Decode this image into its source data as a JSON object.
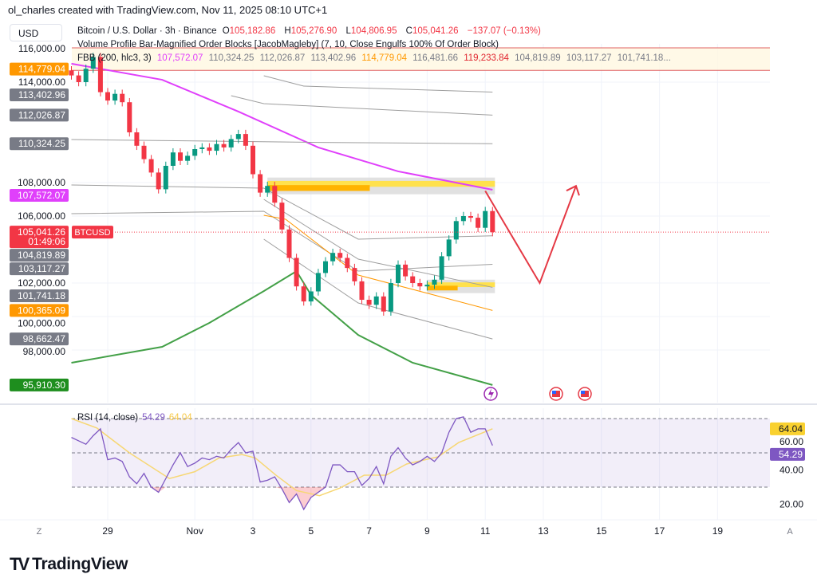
{
  "header": {
    "credit": "ol_charles created with TradingView.com, Nov 11, 2025 08:10 UTC+1",
    "currency": "USD",
    "symbol_title": "Bitcoin / U.S. Dollar · 3h · Binance",
    "ohlc": {
      "o_label": "O",
      "o": "105,182.86",
      "h_label": "H",
      "h": "105,276.90",
      "l_label": "L",
      "l": "104,806.95",
      "c_label": "C",
      "c": "105,041.26",
      "change": "−137.07 (−0.13%)"
    },
    "indicator_vp": "Volume Profile Bar-Magnified Order Blocks [JacobMagleby] (7, 10, Close Engulfs 100% Of Order Block)",
    "indicator_fbb": {
      "name": "FBB (200, hlc3, 3)",
      "values": [
        "107,572.07",
        "110,324.25",
        "112,026.87",
        "113,402.96",
        "114,779.04",
        "116,481.66",
        "119,233.84",
        "104,819.89",
        "103,117.27",
        "101,741.18..."
      ]
    }
  },
  "colors": {
    "up": "#089981",
    "down": "#f23645",
    "basis": "#e040fb",
    "lower": "#43a047",
    "orange": "#ff9800",
    "band": "#9e9e9e",
    "rsi": "#7e57c2",
    "rsi_ma": "#f7d774",
    "projection": "#e53945",
    "order_block": "#ffd600"
  },
  "price_axis": {
    "grid": [
      {
        "v": 116000,
        "t": "116,000.00"
      },
      {
        "v": 114000,
        "t": "114,000.00"
      },
      {
        "v": 108000,
        "t": "108,000.00"
      },
      {
        "v": 106000,
        "t": "106,000.00"
      },
      {
        "v": 102000,
        "t": "102,000.00"
      },
      {
        "v": 100000,
        "t": "100,000.00"
      },
      {
        "v": 98000,
        "t": "98,000.00"
      }
    ],
    "tags": [
      {
        "v": 114779.04,
        "t": "114,779.04",
        "bg": "#ff9800"
      },
      {
        "v": 113402.96,
        "t": "113,402.96",
        "bg": "#787b86"
      },
      {
        "v": 112026.87,
        "t": "112,026.87",
        "bg": "#787b86"
      },
      {
        "v": 110324.25,
        "t": "110,324.25",
        "bg": "#787b86"
      },
      {
        "v": 107572.07,
        "t": "107,572.07",
        "bg": "#e040fb"
      },
      {
        "v": 104819.89,
        "t": "104,819.89",
        "bg": "#787b86"
      },
      {
        "v": 103117.27,
        "t": "103,117.27",
        "bg": "#787b86"
      },
      {
        "v": 101741.18,
        "t": "101,741.18",
        "bg": "#787b86"
      },
      {
        "v": 100365.09,
        "t": "100,365.09",
        "bg": "#ff9800"
      },
      {
        "v": 98662.47,
        "t": "98,662.47",
        "bg": "#787b86"
      },
      {
        "v": 95910.3,
        "t": "95,910.30",
        "bg": "#1e8e1e"
      }
    ],
    "last_price": {
      "v": 105041.26,
      "t": "105,041.26",
      "countdown": "01:49:06",
      "symbol": "BTCUSD"
    }
  },
  "time_axis": {
    "ticks": [
      {
        "d": "2025-10-29T00:00",
        "t": "29"
      },
      {
        "d": "2025-11-01T00:00",
        "t": "Nov"
      },
      {
        "d": "2025-11-03T00:00",
        "t": "3"
      },
      {
        "d": "2025-11-05T00:00",
        "t": "5"
      },
      {
        "d": "2025-11-07T00:00",
        "t": "7"
      },
      {
        "d": "2025-11-09T00:00",
        "t": "9"
      },
      {
        "d": "2025-11-11T00:00",
        "t": "11"
      },
      {
        "d": "2025-11-13T00:00",
        "t": "13"
      },
      {
        "d": "2025-11-15T00:00",
        "t": "15"
      },
      {
        "d": "2025-11-17T00:00",
        "t": "17"
      },
      {
        "d": "2025-11-19T00:00",
        "t": "19"
      }
    ],
    "left_button": "Z",
    "right_button": "A"
  },
  "chart_data": [
    {
      "type": "candlestick",
      "title": "Bitcoin / U.S. Dollar · 3h · Binance",
      "ylim": [
        95000,
        117000
      ],
      "candles_close": [
        [
          "2025-10-27T18:00",
          114400
        ],
        [
          "2025-10-28T00:00",
          114000
        ],
        [
          "2025-10-28T06:00",
          114800
        ],
        [
          "2025-10-28T12:00",
          115500
        ],
        [
          "2025-10-28T18:00",
          113400
        ],
        [
          "2025-10-29T00:00",
          112900
        ],
        [
          "2025-10-29T06:00",
          113300
        ],
        [
          "2025-10-29T12:00",
          112800
        ],
        [
          "2025-10-29T18:00",
          111000
        ],
        [
          "2025-10-30T00:00",
          110200
        ],
        [
          "2025-10-30T06:00",
          109400
        ],
        [
          "2025-10-30T12:00",
          108600
        ],
        [
          "2025-10-30T18:00",
          107600
        ],
        [
          "2025-10-31T00:00",
          109000
        ],
        [
          "2025-10-31T06:00",
          109800
        ],
        [
          "2025-10-31T12:00",
          109300
        ],
        [
          "2025-10-31T18:00",
          109600
        ],
        [
          "2025-11-01T00:00",
          110000
        ],
        [
          "2025-11-01T06:00",
          110100
        ],
        [
          "2025-11-01T12:00",
          109900
        ],
        [
          "2025-11-01T18:00",
          110300
        ],
        [
          "2025-11-02T00:00",
          110100
        ],
        [
          "2025-11-02T06:00",
          110600
        ],
        [
          "2025-11-02T12:00",
          110900
        ],
        [
          "2025-11-02T18:00",
          110200
        ],
        [
          "2025-11-03T00:00",
          108500
        ],
        [
          "2025-11-03T06:00",
          107400
        ],
        [
          "2025-11-03T12:00",
          107800
        ],
        [
          "2025-11-03T18:00",
          106800
        ],
        [
          "2025-11-04T00:00",
          105200
        ],
        [
          "2025-11-04T06:00",
          103500
        ],
        [
          "2025-11-04T12:00",
          101800
        ],
        [
          "2025-11-04T18:00",
          100900
        ],
        [
          "2025-11-05T00:00",
          101500
        ],
        [
          "2025-11-05T06:00",
          102600
        ],
        [
          "2025-11-05T12:00",
          103300
        ],
        [
          "2025-11-05T18:00",
          103800
        ],
        [
          "2025-11-06T00:00",
          103500
        ],
        [
          "2025-11-06T06:00",
          102900
        ],
        [
          "2025-11-06T12:00",
          102100
        ],
        [
          "2025-11-06T18:00",
          101000
        ],
        [
          "2025-11-07T00:00",
          100700
        ],
        [
          "2025-11-07T06:00",
          101200
        ],
        [
          "2025-11-07T12:00",
          100300
        ],
        [
          "2025-11-07T18:00",
          102000
        ],
        [
          "2025-11-08T00:00",
          103100
        ],
        [
          "2025-11-08T06:00",
          102400
        ],
        [
          "2025-11-08T12:00",
          102000
        ],
        [
          "2025-11-08T18:00",
          101800
        ],
        [
          "2025-11-09T00:00",
          101900
        ],
        [
          "2025-11-09T06:00",
          102200
        ],
        [
          "2025-11-09T12:00",
          103600
        ],
        [
          "2025-11-09T18:00",
          104600
        ],
        [
          "2025-11-10T00:00",
          105700
        ],
        [
          "2025-11-10T06:00",
          106000
        ],
        [
          "2025-11-10T12:00",
          105900
        ],
        [
          "2025-11-10T18:00",
          105300
        ],
        [
          "2025-11-11T00:00",
          106300
        ],
        [
          "2025-11-11T06:00",
          105041.26
        ]
      ],
      "bands": [
        {
          "color": "#e040fb",
          "width": 2,
          "points": [
            [
              "2025-10-27T18:00",
              115100
            ],
            [
              "2025-10-30T21:00",
              114140
            ],
            [
              "2025-11-02T12:00",
              112240
            ],
            [
              "2025-11-05T06:00",
              110100
            ],
            [
              "2025-11-08T00:00",
              108670
            ],
            [
              "2025-11-11T06:00",
              107572.07
            ]
          ]
        },
        {
          "color": "#43a047",
          "width": 2,
          "points": [
            [
              "2025-10-27T18:00",
              97240
            ],
            [
              "2025-10-30T21:00",
              98190
            ],
            [
              "2025-11-01T12:00",
              99620
            ],
            [
              "2025-11-03T09:00",
              101520
            ],
            [
              "2025-11-04T12:00",
              102710
            ],
            [
              "2025-11-05T00:00",
              101290
            ],
            [
              "2025-11-06T15:00",
              98900
            ],
            [
              "2025-11-08T12:00",
              97240
            ],
            [
              "2025-11-11T06:00",
              95910.3
            ]
          ]
        },
        {
          "color": "#9e9e9e",
          "width": 1,
          "points": [
            [
              "2025-11-03T09:00",
              114381
            ],
            [
              "2025-11-04T18:00",
              113762
            ],
            [
              "2025-11-11T06:00",
              113402.96
            ]
          ]
        },
        {
          "color": "#9e9e9e",
          "width": 1,
          "points": [
            [
              "2025-11-02T06:00",
              113190
            ],
            [
              "2025-11-03T09:00",
              112714
            ],
            [
              "2025-11-11T06:00",
              112026.87
            ]
          ]
        },
        {
          "color": "#9e9e9e",
          "width": 1,
          "points": [
            [
              "2025-10-27T18:00",
              110571
            ],
            [
              "2025-11-05T06:00",
              110400
            ],
            [
              "2025-11-11T06:00",
              110324.25
            ]
          ]
        },
        {
          "color": "#9e9e9e",
          "width": 1,
          "points": [
            [
              "2025-10-27T18:00",
              107857
            ],
            [
              "2025-11-03T09:00",
              107667
            ],
            [
              "2025-11-06T15:00",
              104619
            ],
            [
              "2025-11-11T06:00",
              104819.89
            ]
          ]
        },
        {
          "color": "#9e9e9e",
          "width": 1,
          "points": [
            [
              "2025-10-27T18:00",
              106143
            ],
            [
              "2025-11-03T09:00",
              106286
            ],
            [
              "2025-11-06T15:00",
              102714
            ],
            [
              "2025-11-11T06:00",
              103117.27
            ]
          ]
        },
        {
          "color": "#9e9e9e",
          "width": 1,
          "points": [
            [
              "2025-11-03T09:00",
              107000
            ],
            [
              "2025-11-06T15:00",
              103429
            ],
            [
              "2025-11-11T06:00",
              101741.18
            ]
          ]
        },
        {
          "color": "#ff9800",
          "width": 1,
          "points": [
            [
              "2025-11-03T09:00",
              106048
            ],
            [
              "2025-11-04T03:00",
              105810
            ],
            [
              "2025-11-06T15:00",
              102476
            ],
            [
              "2025-11-11T06:00",
              100365.09
            ]
          ]
        },
        {
          "color": "#9e9e9e",
          "width": 1,
          "points": [
            [
              "2025-11-03T09:00",
              104619
            ],
            [
              "2025-11-06T15:00",
              100810
            ],
            [
              "2025-11-11T06:00",
              98662.47
            ]
          ]
        }
      ],
      "order_blocks": [
        {
          "from": "2025-11-03T12:00",
          "to": "2025-11-11T06:00",
          "top": 108300,
          "bottom": 107300
        },
        {
          "from": "2025-11-09T00:00",
          "to": "2025-11-11T06:00",
          "top": 102200,
          "bottom": 101400
        }
      ],
      "zone": {
        "top": 116050,
        "bottom": 114700
      },
      "projection": [
        [
          "2025-11-11T00:00",
          107500
        ],
        [
          "2025-11-12T21:00",
          102000
        ],
        [
          "2025-11-14T03:00",
          107800
        ]
      ]
    },
    {
      "type": "line",
      "title": "RSI (14, close)",
      "legend_values": [
        "54.29",
        "64.04"
      ],
      "ylim": [
        10,
        75
      ],
      "levels": [
        70,
        50,
        30
      ],
      "ticks": [
        {
          "v": 60,
          "t": "60.00"
        },
        {
          "v": 40,
          "t": "40.00"
        },
        {
          "v": 20,
          "t": "20.00"
        }
      ],
      "rsi": [
        59,
        57,
        55,
        60,
        64,
        46,
        47,
        45,
        36,
        32,
        38,
        30,
        27,
        35,
        43,
        50,
        42,
        44,
        47,
        46,
        48,
        47,
        52,
        56,
        50,
        51,
        33,
        34,
        36,
        29,
        21,
        26,
        17,
        24,
        27,
        30,
        43,
        43,
        39,
        39,
        31,
        35,
        42,
        32,
        48,
        53,
        47,
        43,
        45,
        48,
        45,
        50,
        62,
        70,
        71,
        62,
        64,
        64,
        54.29
      ],
      "rsi_ma": [
        [
          "2025-10-27T18:00",
          70
        ],
        [
          "2025-10-28T15:00",
          64.5
        ],
        [
          "2025-10-29T18:00",
          50
        ],
        [
          "2025-10-31T03:00",
          35
        ],
        [
          "2025-11-01T00:00",
          39
        ],
        [
          "2025-11-01T20:00",
          47
        ],
        [
          "2025-11-02T15:00",
          49
        ],
        [
          "2025-11-03T02:00",
          47
        ],
        [
          "2025-11-03T19:00",
          37
        ],
        [
          "2025-11-04T12:00",
          28
        ],
        [
          "2025-11-05T07:00",
          25
        ],
        [
          "2025-11-06T00:00",
          29.5
        ],
        [
          "2025-11-06T20:00",
          37
        ],
        [
          "2025-11-07T14:00",
          37
        ],
        [
          "2025-11-08T07:00",
          43.5
        ],
        [
          "2025-11-09T09:00",
          47.7
        ],
        [
          "2025-11-10T02:00",
          56
        ],
        [
          "2025-11-11T06:00",
          64.04
        ]
      ],
      "tags": [
        {
          "v": 64.04,
          "t": "64.04",
          "bg": "#f9d12f",
          "fg": "#131722"
        },
        {
          "v": 54.29,
          "t": "54.29",
          "bg": "#7e57c2",
          "fg": "#ffffff"
        }
      ]
    }
  ],
  "events": [
    "lightning-event-icon",
    "us-flag-event-icon",
    "us-flag-event-icon"
  ],
  "footer": {
    "brand": "TradingView",
    "mark": "TV"
  }
}
